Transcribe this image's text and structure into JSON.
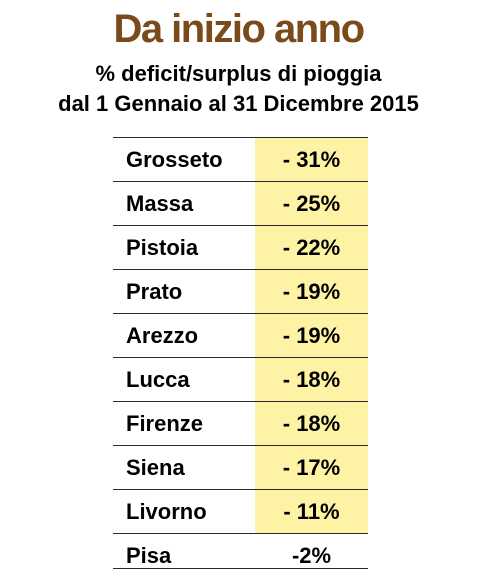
{
  "chart_data": {
    "type": "table",
    "title": "Da inizio anno",
    "subtitle_line1": "% deficit/surplus di pioggia",
    "subtitle_line2": "dal 1 Gennaio al 31 Dicembre 2015",
    "rows": [
      {
        "city": "Grosseto",
        "value_label": "- 31%",
        "value": -31,
        "highlight": true
      },
      {
        "city": "Massa",
        "value_label": "- 25%",
        "value": -25,
        "highlight": true
      },
      {
        "city": "Pistoia",
        "value_label": "- 22%",
        "value": -22,
        "highlight": true
      },
      {
        "city": "Prato",
        "value_label": "- 19%",
        "value": -19,
        "highlight": true
      },
      {
        "city": "Arezzo",
        "value_label": "- 19%",
        "value": -19,
        "highlight": true
      },
      {
        "city": "Lucca",
        "value_label": "- 18%",
        "value": -18,
        "highlight": true
      },
      {
        "city": "Firenze",
        "value_label": "- 18%",
        "value": -18,
        "highlight": true
      },
      {
        "city": "Siena",
        "value_label": "- 17%",
        "value": -17,
        "highlight": true
      },
      {
        "city": "Livorno",
        "value_label": "- 11%",
        "value": -11,
        "highlight": true
      },
      {
        "city": "Pisa",
        "value_label": "-2%",
        "value": -2,
        "highlight": false
      }
    ],
    "colors": {
      "title": "#7b4a1a",
      "highlight": "#fef3a4"
    }
  }
}
